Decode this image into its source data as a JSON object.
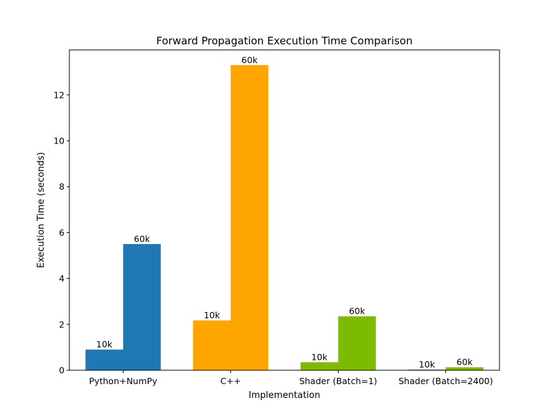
{
  "chart_data": {
    "type": "bar",
    "title": "Forward Propagation Execution Time Comparison",
    "xlabel": "Implementation",
    "ylabel": "Execution Time (seconds)",
    "categories": [
      "Python+NumPy",
      "C++",
      "Shader (Batch=1)",
      "Shader (Batch=2400)"
    ],
    "colors": [
      "#1f77b4",
      "#ffa500",
      "#7cbb00",
      "#7cbb00"
    ],
    "bar_labels": [
      "10k",
      "60k"
    ],
    "values": [
      [
        0.9,
        5.5
      ],
      [
        2.17,
        13.3
      ],
      [
        0.35,
        2.35
      ],
      [
        0.03,
        0.13
      ]
    ],
    "ylim": [
      0,
      13.96
    ],
    "yticks": [
      0,
      2,
      4,
      6,
      8,
      10,
      12
    ],
    "grid": false
  }
}
